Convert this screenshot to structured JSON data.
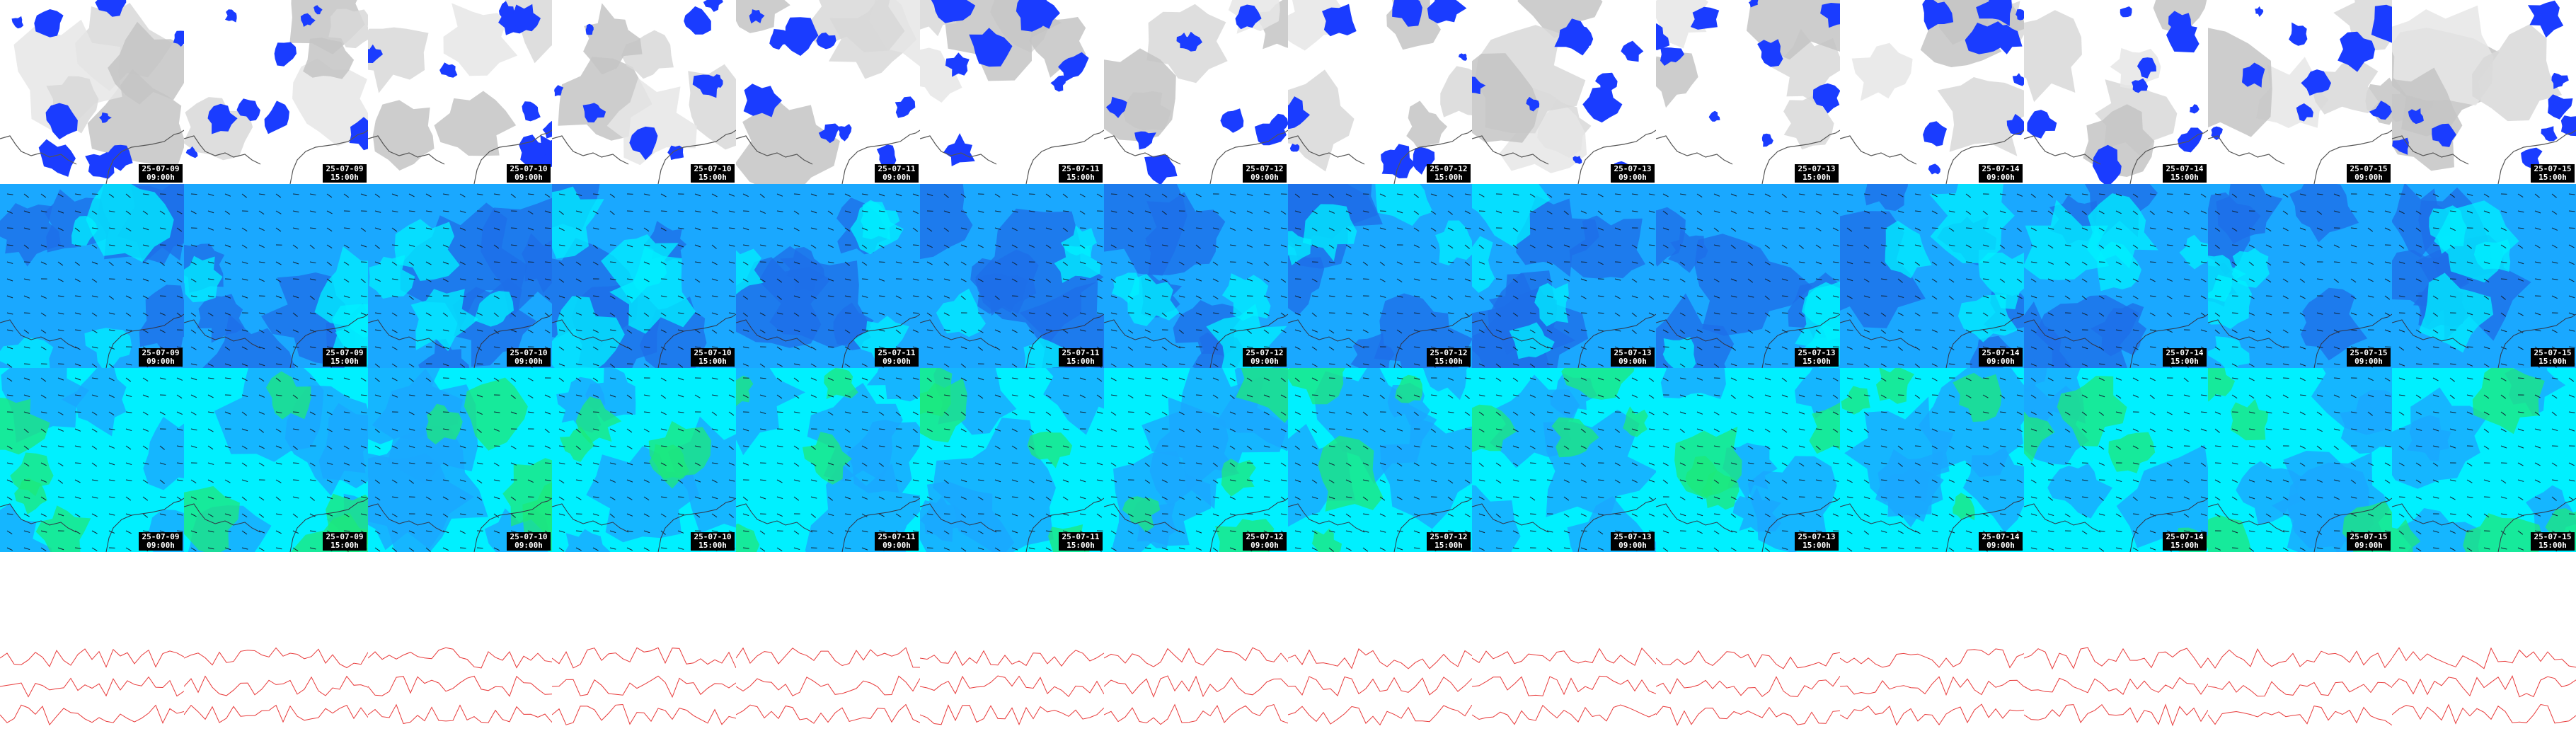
{
  "panels": {
    "rows": [
      {
        "kind": "precip"
      },
      {
        "kind": "wind-upper"
      },
      {
        "kind": "wind-lower"
      },
      {
        "kind": "contour"
      }
    ],
    "timestamps": [
      {
        "date": "25-07-09",
        "time": "09:00h"
      },
      {
        "date": "25-07-09",
        "time": "15:00h"
      },
      {
        "date": "25-07-10",
        "time": "09:00h"
      },
      {
        "date": "25-07-10",
        "time": "15:00h"
      },
      {
        "date": "25-07-11",
        "time": "09:00h"
      },
      {
        "date": "25-07-11",
        "time": "15:00h"
      },
      {
        "date": "25-07-12",
        "time": "09:00h"
      },
      {
        "date": "25-07-12",
        "time": "15:00h"
      },
      {
        "date": "25-07-13",
        "time": "09:00h"
      },
      {
        "date": "25-07-13",
        "time": "15:00h"
      },
      {
        "date": "25-07-14",
        "time": "09:00h"
      },
      {
        "date": "25-07-14",
        "time": "15:00h"
      },
      {
        "date": "25-07-15",
        "time": "09:00h"
      },
      {
        "date": "25-07-15",
        "time": "15:00h"
      }
    ],
    "colors": {
      "precip_blue": "#1a3cff",
      "cloud_grey": "#b0b0b0",
      "wind_dark": "#1e6fe8",
      "wind_mid": "#1aa8ff",
      "wind_cyan": "#00f0ff",
      "wind_green": "#1ee87a",
      "coast_line": "#555555",
      "contour_red": "#e83a3a"
    }
  }
}
